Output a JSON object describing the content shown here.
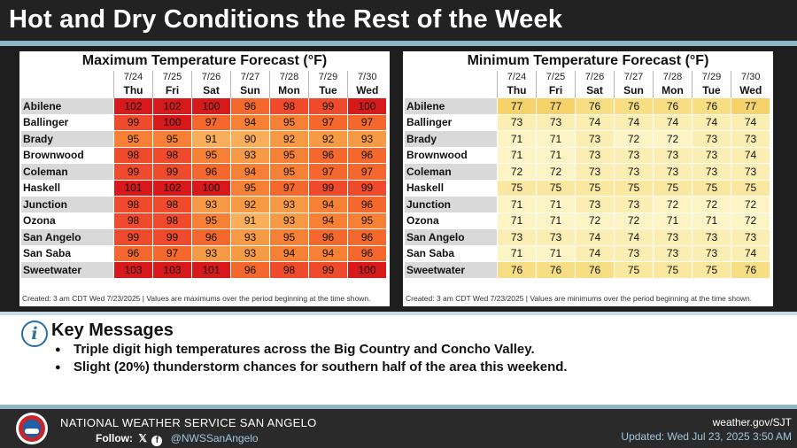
{
  "header": {
    "title": "Hot and Dry Conditions the Rest of the Week"
  },
  "dates": [
    "7/24",
    "7/25",
    "7/26",
    "7/27",
    "7/28",
    "7/29",
    "7/30"
  ],
  "weekdays": [
    "Thu",
    "Fri",
    "Sat",
    "Sun",
    "Mon",
    "Tue",
    "Wed"
  ],
  "cities": [
    "Abilene",
    "Ballinger",
    "Brady",
    "Brownwood",
    "Coleman",
    "Haskell",
    "Junction",
    "Ozona",
    "San Angelo",
    "San Saba",
    "Sweetwater"
  ],
  "max_table": {
    "title": "Maximum Temperature Forecast (°F)",
    "values": [
      [
        102,
        102,
        100,
        96,
        98,
        99,
        100
      ],
      [
        99,
        100,
        97,
        94,
        95,
        97,
        97
      ],
      [
        95,
        95,
        91,
        90,
        92,
        92,
        93
      ],
      [
        98,
        98,
        95,
        93,
        95,
        96,
        96
      ],
      [
        99,
        99,
        96,
        94,
        95,
        97,
        97
      ],
      [
        101,
        102,
        100,
        95,
        97,
        99,
        99
      ],
      [
        98,
        98,
        93,
        92,
        93,
        94,
        96
      ],
      [
        98,
        98,
        95,
        91,
        93,
        94,
        95
      ],
      [
        99,
        99,
        96,
        93,
        95,
        96,
        96
      ],
      [
        96,
        97,
        93,
        93,
        94,
        94,
        96
      ],
      [
        103,
        103,
        101,
        96,
        98,
        99,
        100
      ]
    ],
    "note": "Created: 3 am CDT Wed 7/23/2025 | Values are maximums over the period beginning at the time shown."
  },
  "min_table": {
    "title": "Minimum Temperature Forecast (°F)",
    "values": [
      [
        77,
        77,
        76,
        76,
        76,
        76,
        77
      ],
      [
        73,
        73,
        74,
        74,
        74,
        74,
        74
      ],
      [
        71,
        71,
        73,
        72,
        72,
        73,
        73
      ],
      [
        71,
        71,
        73,
        73,
        73,
        73,
        74
      ],
      [
        72,
        72,
        73,
        73,
        73,
        73,
        73
      ],
      [
        75,
        75,
        75,
        75,
        75,
        75,
        75
      ],
      [
        71,
        71,
        73,
        73,
        72,
        72,
        72
      ],
      [
        71,
        71,
        72,
        72,
        71,
        71,
        72
      ],
      [
        73,
        73,
        74,
        74,
        73,
        73,
        73
      ],
      [
        71,
        71,
        74,
        73,
        73,
        73,
        74
      ],
      [
        76,
        76,
        76,
        75,
        75,
        75,
        76
      ]
    ],
    "note": "Created: 3 am CDT Wed 7/23/2025 | Values are minimums over the period beginning at the time shown."
  },
  "key_messages": {
    "title": "Key Messages",
    "icon": "info-icon",
    "items": [
      "Triple digit high temperatures across the Big Country and Concho Valley.",
      "Slight (20%) thunderstorm chances for southern half of the area this weekend."
    ]
  },
  "footer": {
    "office": "NATIONAL WEATHER SERVICE SAN ANGELO",
    "follow_label": "Follow:",
    "x_icon": "𝕏",
    "facebook_icon": "f",
    "handle": "@NWSSanAngelo",
    "url": "weather.gov/SJT",
    "updated": "Updated: Wed Jul 23, 2025 3:50 AM"
  },
  "colors": {
    "header_bg": "#222222",
    "accent_bar": "#8fb5c7",
    "info_icon": "#2c6e9e",
    "handle_text": "#9fc8e0"
  }
}
